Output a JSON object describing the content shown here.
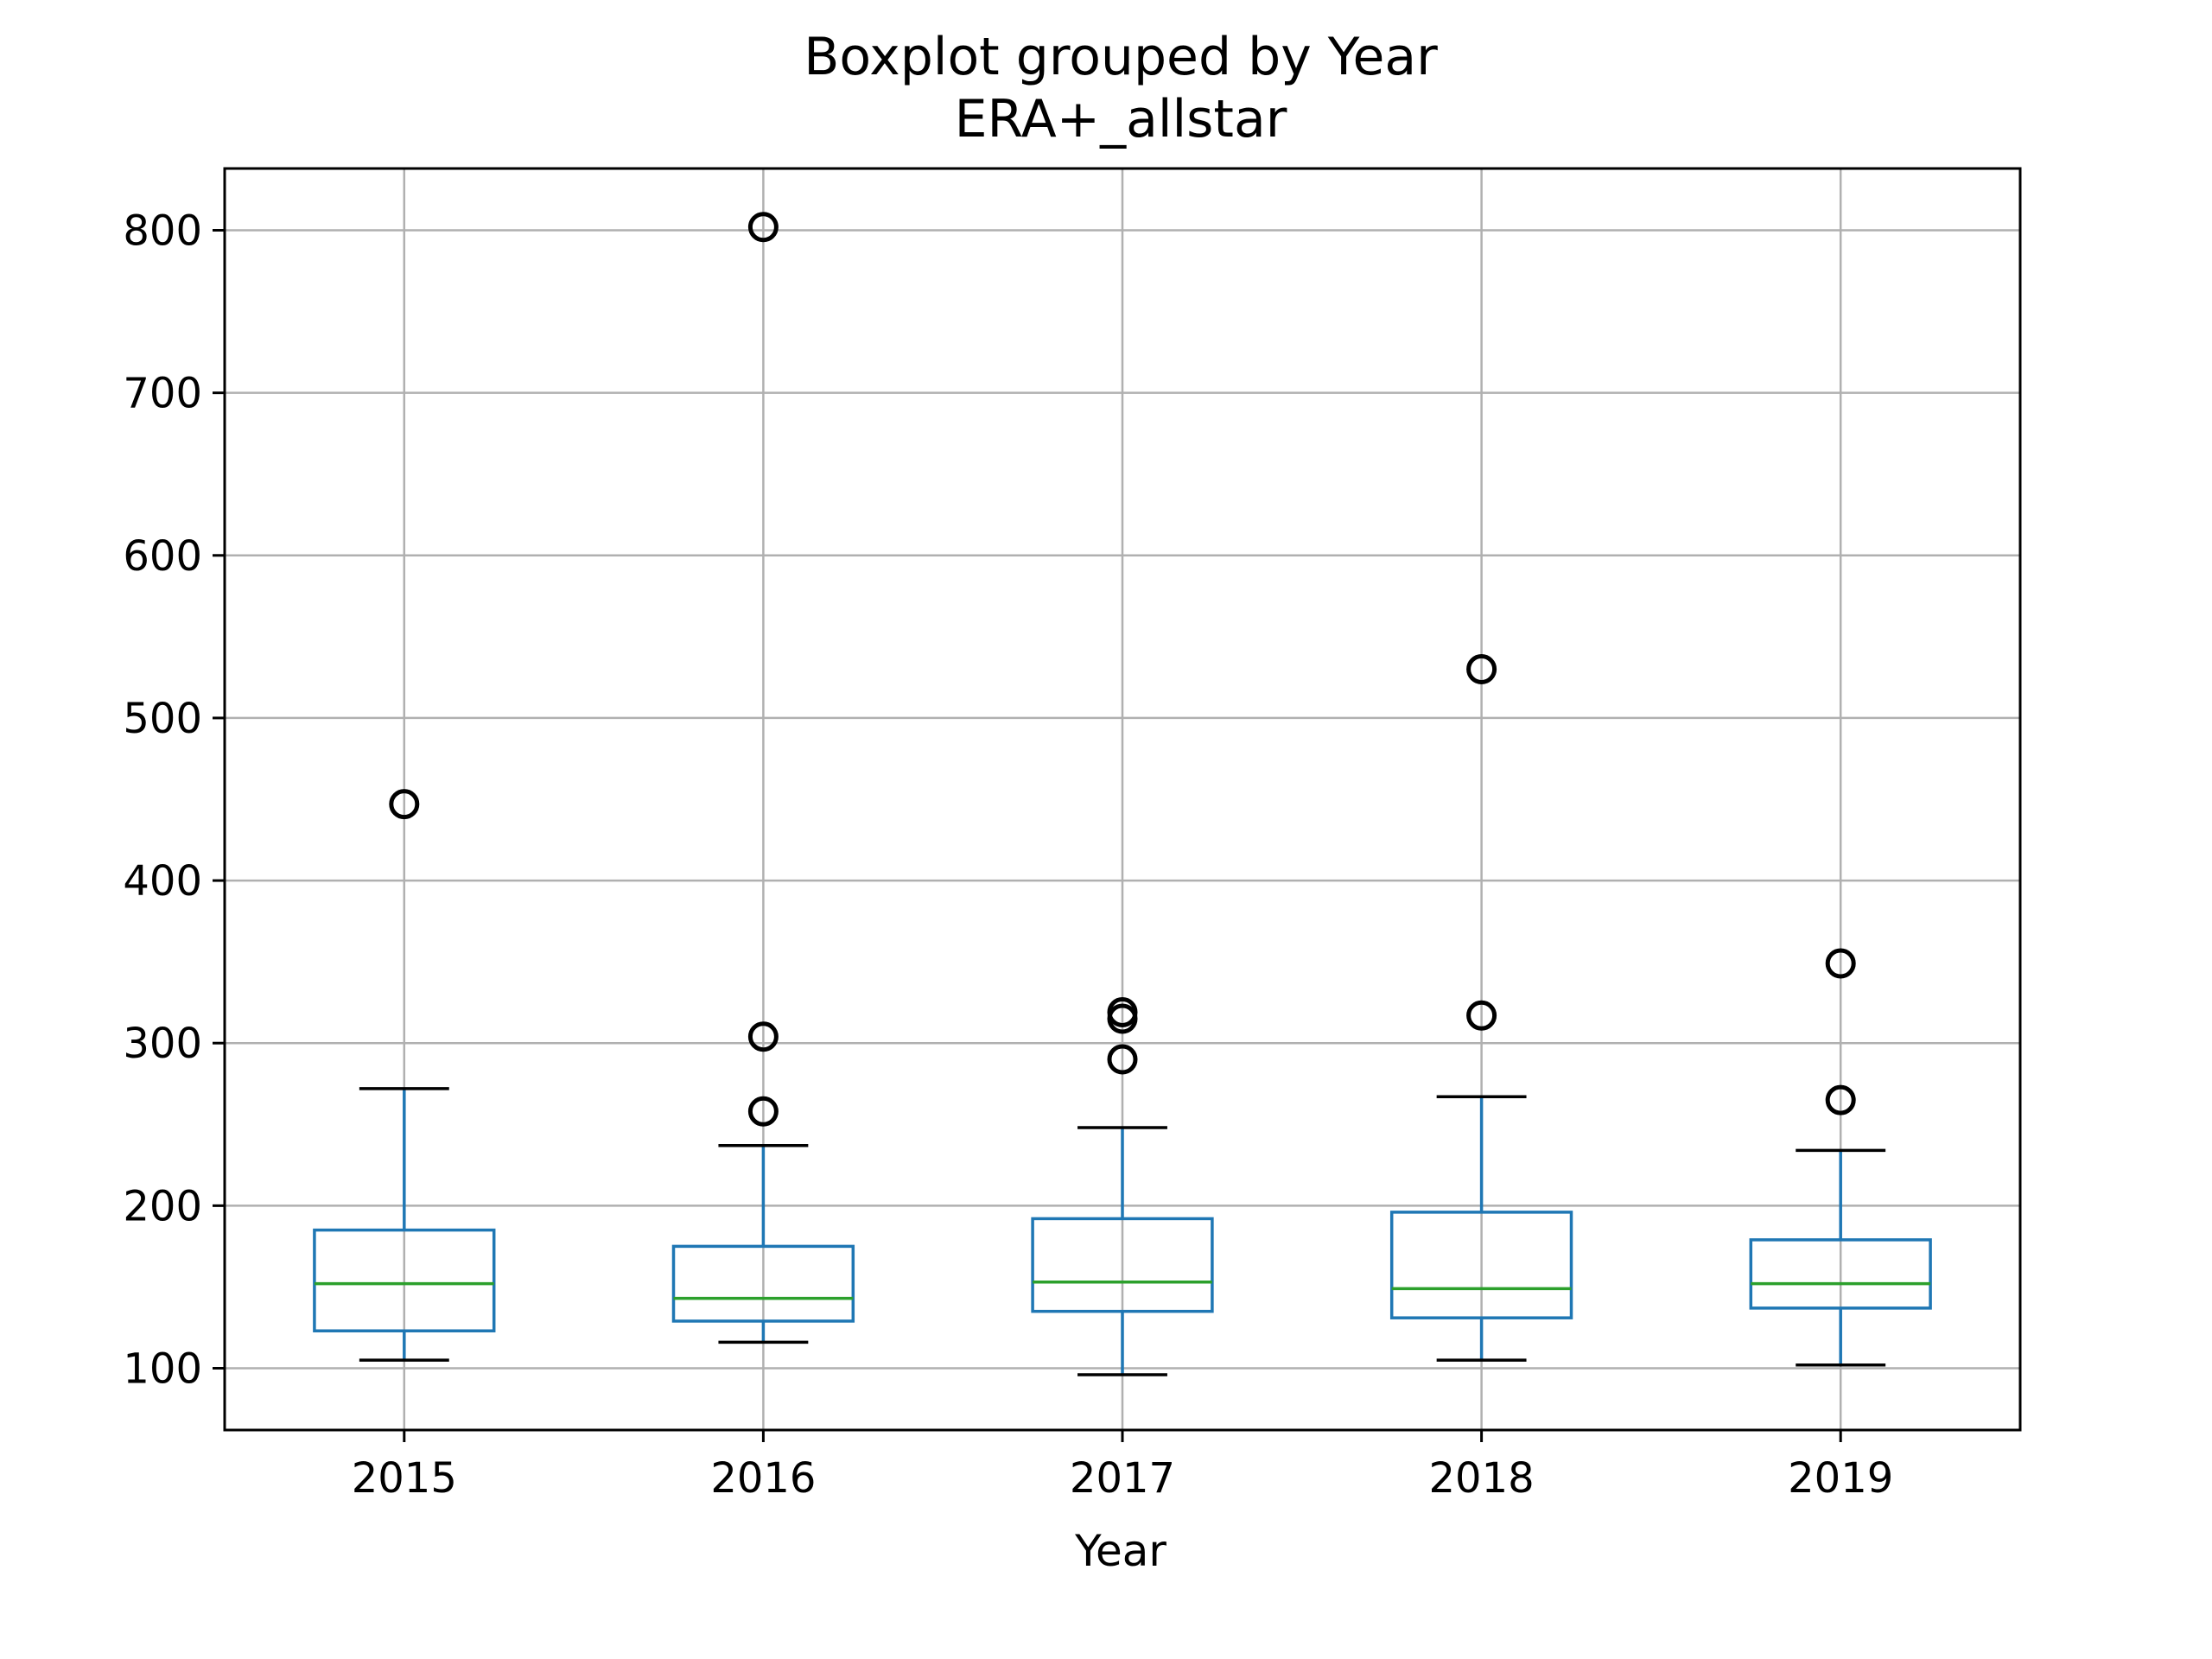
{
  "chart_data": {
    "type": "box",
    "title": "Boxplot grouped by Year",
    "subtitle": "ERA+_allstar",
    "xlabel": "Year",
    "ylabel": "",
    "categories": [
      "2015",
      "2016",
      "2017",
      "2018",
      "2019"
    ],
    "ylim": [
      62,
      838
    ],
    "yticks": [
      100,
      200,
      300,
      400,
      500,
      600,
      700,
      800
    ],
    "grid": true,
    "boxes": [
      {
        "category": "2015",
        "whisker_low": 105,
        "q1": 123,
        "median": 152,
        "q3": 185,
        "whisker_high": 272,
        "outliers": [
          447
        ]
      },
      {
        "category": "2016",
        "whisker_low": 116,
        "q1": 129,
        "median": 143,
        "q3": 175,
        "whisker_high": 237,
        "outliers": [
          802,
          304,
          258
        ]
      },
      {
        "category": "2017",
        "whisker_low": 96,
        "q1": 135,
        "median": 153,
        "q3": 192,
        "whisker_high": 248,
        "outliers": [
          319,
          315,
          290
        ]
      },
      {
        "category": "2018",
        "whisker_low": 105,
        "q1": 131,
        "median": 149,
        "q3": 196,
        "whisker_high": 267,
        "outliers": [
          530,
          317
        ]
      },
      {
        "category": "2019",
        "whisker_low": 102,
        "q1": 137,
        "median": 152,
        "q3": 179,
        "whisker_high": 234,
        "outliers": [
          349,
          265
        ]
      }
    ],
    "colors": {
      "box": "#1f77b4",
      "median": "#2ca02c",
      "whisker_cap": "#000000",
      "outlier": "#000000",
      "grid": "#b0b0b0",
      "axes": "#000000"
    }
  }
}
